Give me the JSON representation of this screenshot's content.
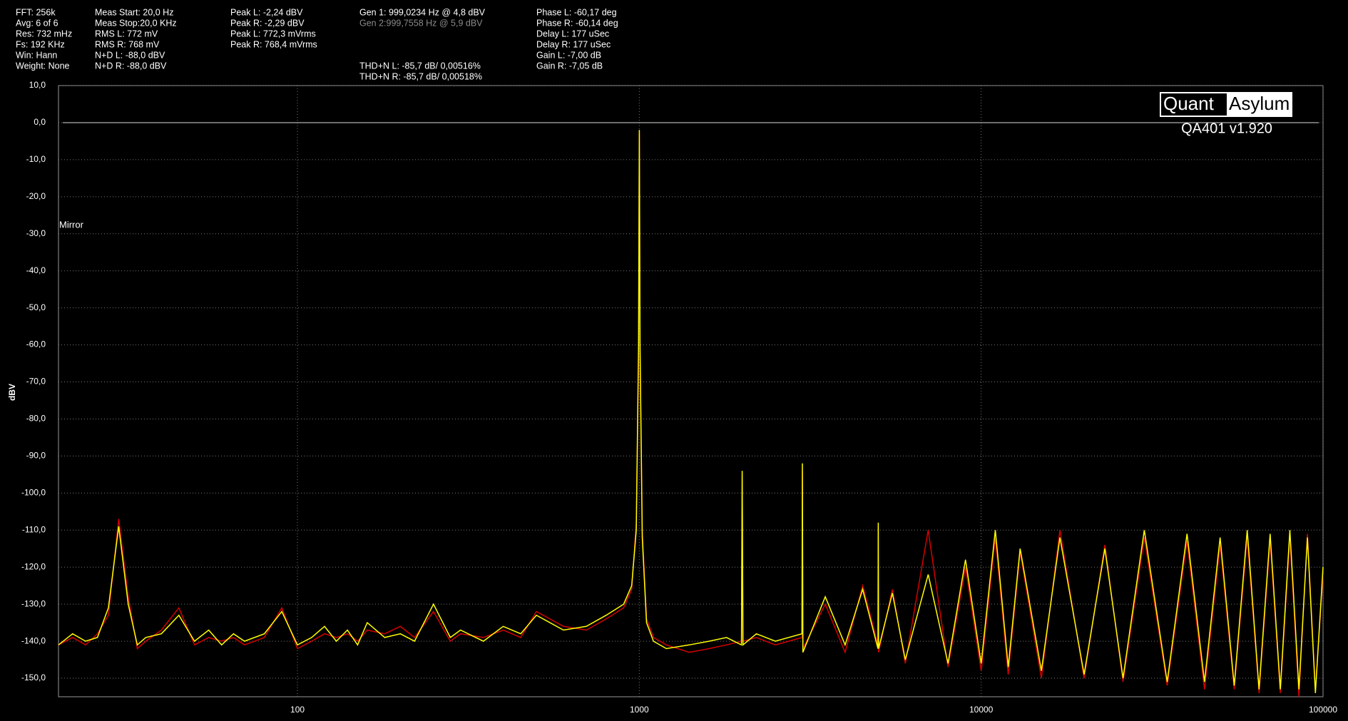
{
  "chart_data": {
    "type": "line",
    "xscale": "log",
    "ylabel": "dBV",
    "annotation": "Mirror",
    "brand": [
      "Quant",
      "Asylum"
    ],
    "version": "QA401 v1.920",
    "stats": [
      [
        "FFT: 256k",
        "Avg: 6 of 6",
        "Res: 732 mHz",
        "Fs: 192 KHz",
        "Win: Hann",
        "Weight: None"
      ],
      [
        "Meas Start: 20,0 Hz",
        "Meas Stop:20,0 KHz",
        "RMS L: 772 mV",
        "RMS R: 768 mV",
        "N+D L: -88,0 dBV",
        "N+D R: -88,0 dBV"
      ],
      [
        "Peak L: -2,24 dBV",
        "Peak R: -2,29 dBV",
        "Peak L: 772,3 mVrms",
        "Peak R: 768,4 mVrms"
      ],
      [
        "Gen 1: 999,0234 Hz @ 4,8  dBV",
        "Gen 2:999,7558 Hz @ 5,9  dBV"
      ],
      [
        "THD+N L: -85,7 dB/ 0,00516%",
        "THD+N R: -85,7 dB/ 0,00518%"
      ],
      [
        "Phase L: -60,17 deg",
        "Phase R: -60,14 deg",
        "Delay L: 177 uSec",
        "Delay R: 177 uSec",
        "Gain L: -7,00 dB",
        "Gain R: -7,05 dB"
      ]
    ],
    "xlim": [
      20,
      100000
    ],
    "xticks": [
      100,
      1000,
      10000,
      100000
    ],
    "ylim": [
      -155,
      10
    ],
    "reference_line": 0,
    "yticks": [
      {
        "value": 10,
        "label": "10,0"
      },
      {
        "value": 0,
        "label": "0,0"
      },
      {
        "value": -10,
        "label": "-10,0"
      },
      {
        "value": -20,
        "label": "-20,0"
      },
      {
        "value": -30,
        "label": "-30,0"
      },
      {
        "value": -40,
        "label": "-40,0"
      },
      {
        "value": -50,
        "label": "-50,0"
      },
      {
        "value": -60,
        "label": "-60,0"
      },
      {
        "value": -70,
        "label": "-70,0"
      },
      {
        "value": -80,
        "label": "-80,0"
      },
      {
        "value": -90,
        "label": "-90,0"
      },
      {
        "value": -100,
        "label": "-100,0"
      },
      {
        "value": -110,
        "label": "-110,0"
      },
      {
        "value": -120,
        "label": "-120,0"
      },
      {
        "value": -130,
        "label": "-130,0"
      },
      {
        "value": -140,
        "label": "-140,0"
      },
      {
        "value": -150,
        "label": "-150,0"
      }
    ],
    "grid": true,
    "x": [
      20,
      22,
      24,
      26,
      28,
      30,
      32,
      34,
      36,
      40,
      45,
      50,
      55,
      60,
      65,
      70,
      80,
      90,
      100,
      110,
      120,
      130,
      140,
      150,
      160,
      180,
      200,
      220,
      250,
      280,
      300,
      350,
      400,
      450,
      500,
      600,
      700,
      800,
      900,
      950,
      980,
      995,
      1000,
      1005,
      1020,
      1050,
      1100,
      1200,
      1400,
      1600,
      1800,
      1990,
      2000,
      2010,
      2200,
      2500,
      2990,
      3000,
      3010,
      3500,
      4000,
      4500,
      4990,
      5000,
      5010,
      5500,
      6000,
      7000,
      8000,
      9000,
      10000,
      11000,
      12000,
      13000,
      15000,
      17000,
      20000,
      23000,
      26000,
      30000,
      35000,
      40000,
      45000,
      50000,
      55000,
      60000,
      65000,
      70000,
      75000,
      80000,
      85000,
      90000,
      95000,
      100000
    ],
    "series": [
      {
        "color": "#d40000",
        "values": [
          -141,
          -139,
          -141,
          -138,
          -133,
          -107,
          -128,
          -142,
          -140,
          -137,
          -131,
          -141,
          -139,
          -140,
          -139,
          -141,
          -139,
          -131,
          -142,
          -140,
          -138,
          -139,
          -138,
          -140,
          -137,
          -138,
          -136,
          -139,
          -132,
          -140,
          -138,
          -139,
          -137,
          -139,
          -132,
          -136,
          -137,
          -134,
          -131,
          -126,
          -108,
          -65,
          -3,
          -62,
          -110,
          -134,
          -139,
          -141,
          -143,
          -142,
          -141,
          -140,
          -96,
          -140,
          -139,
          -141,
          -139,
          -94,
          -142,
          -130,
          -143,
          -125,
          -141,
          -109,
          -143,
          -126,
          -146,
          -110,
          -147,
          -120,
          -148,
          -112,
          -149,
          -116,
          -150,
          -110,
          -150,
          -114,
          -151,
          -112,
          -152,
          -113,
          -153,
          -114,
          -153,
          -112,
          -154,
          -113,
          -154,
          -112,
          -155,
          -111,
          -153,
          -122
        ]
      },
      {
        "color": "#ffff00",
        "values": [
          -141,
          -138,
          -140,
          -139,
          -131,
          -109,
          -130,
          -141,
          -139,
          -138,
          -133,
          -140,
          -137,
          -141,
          -138,
          -140,
          -138,
          -132,
          -141,
          -139,
          -136,
          -140,
          -137,
          -141,
          -135,
          -139,
          -138,
          -140,
          -130,
          -139,
          -137,
          -140,
          -136,
          -138,
          -133,
          -137,
          -136,
          -133,
          -130,
          -125,
          -110,
          -60,
          -2,
          -60,
          -112,
          -135,
          -140,
          -142,
          -141,
          -140,
          -139,
          -141,
          -94,
          -141,
          -138,
          -140,
          -138,
          -92,
          -143,
          -128,
          -141,
          -126,
          -142,
          -108,
          -142,
          -127,
          -145,
          -122,
          -146,
          -118,
          -146,
          -110,
          -147,
          -115,
          -148,
          -112,
          -149,
          -115,
          -150,
          -110,
          -151,
          -111,
          -151,
          -112,
          -152,
          -110,
          -153,
          -111,
          -153,
          -110,
          -153,
          -112,
          -154,
          -120
        ]
      }
    ]
  }
}
